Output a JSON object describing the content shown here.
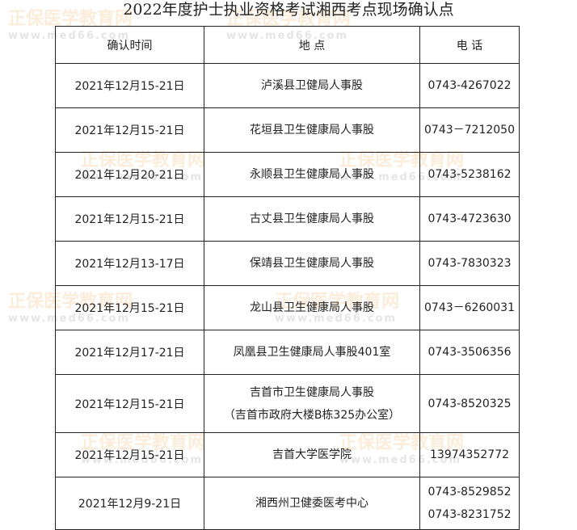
{
  "title": "2022年度护士执业资格考试湘西考点现场确认点",
  "watermark": "正保医学教育网 www.med66.com",
  "headers": [
    "确认时间",
    "地 点",
    "电 话"
  ],
  "rows": [
    {
      "time": "2021年12月15-21日",
      "place": [
        "泸溪县卫健局人事股"
      ],
      "phone": [
        "0743-4267022"
      ]
    },
    {
      "time": "2021年12月15-21日",
      "place": [
        "花垣县卫生健康局人事股"
      ],
      "phone": [
        "0743－7212050"
      ]
    },
    {
      "time": "2021年12月20-21日",
      "place": [
        "永顺县卫生健康局人事股"
      ],
      "phone": [
        "0743-5238162"
      ]
    },
    {
      "time": "2021年12月15-21日",
      "place": [
        "古丈县卫生健康局人事股"
      ],
      "phone": [
        "0743-4723630"
      ]
    },
    {
      "time": "2021年12月13-17日",
      "place": [
        "保靖县卫生健康局人事股"
      ],
      "phone": [
        "0743-7830323"
      ]
    },
    {
      "time": "2021年12月15-21日",
      "place": [
        "龙山县卫生健康局人事股"
      ],
      "phone": [
        "0743－6260031"
      ]
    },
    {
      "time": "2021年12月17-21日",
      "place": [
        "凤凰县卫生健康局人事股401室"
      ],
      "phone": [
        "0743-3506356"
      ]
    },
    {
      "time": "2021年12月15-21日",
      "place": [
        "吉首市卫生健康局人事股",
        "（吉首市政府大楼B栋325办公室）"
      ],
      "phone": [
        "0743-8520325"
      ]
    },
    {
      "time": "2021年12月15-21日",
      "place": [
        "吉首大学医学院"
      ],
      "phone": [
        "13974352772"
      ]
    },
    {
      "time": "2021年12月9-21日",
      "place": [
        "湘西州卫健委医考中心"
      ],
      "phone": [
        "0743-8529852",
        "0743-8231752"
      ]
    }
  ]
}
